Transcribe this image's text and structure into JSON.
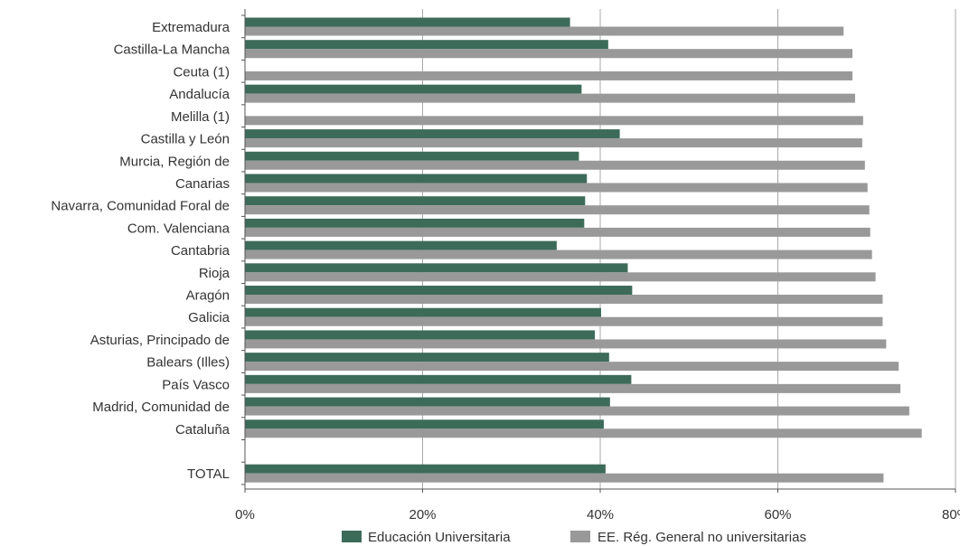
{
  "chart_data": {
    "type": "bar",
    "orientation": "horizontal",
    "categories": [
      "Extremadura",
      "Castilla-La Mancha",
      "Ceuta (1)",
      "Andalucía",
      "Melilla (1)",
      "Castilla y León",
      "Murcia, Región de",
      "Canarias",
      "Navarra, Comunidad Foral de",
      "Com. Valenciana",
      "Cantabria",
      "Rioja",
      "Aragón",
      "Galicia",
      "Asturias, Principado de",
      "Balears (Illes)",
      "País Vasco",
      "Madrid, Comunidad de",
      "Cataluña",
      "",
      "TOTAL"
    ],
    "series": [
      {
        "name": "Educación Universitaria",
        "color": "#3d6b5a",
        "values": [
          36.6,
          40.9,
          null,
          37.9,
          null,
          42.2,
          37.6,
          38.5,
          38.3,
          38.2,
          35.1,
          43.1,
          43.6,
          40.1,
          39.4,
          41.0,
          43.5,
          41.1,
          40.4,
          null,
          40.6
        ]
      },
      {
        "name": "EE. Rég. General no universitarias",
        "color": "#999999",
        "values": [
          67.4,
          68.4,
          68.4,
          68.7,
          69.6,
          69.5,
          69.8,
          70.1,
          70.3,
          70.4,
          70.6,
          71.0,
          71.8,
          71.8,
          72.2,
          73.6,
          73.8,
          74.8,
          76.2,
          null,
          71.9
        ]
      }
    ],
    "xlim": [
      0,
      80
    ],
    "xticks": [
      "0%",
      "20%",
      "40%",
      "60%",
      "80%"
    ],
    "grid": "vertical",
    "legend_position": "bottom"
  }
}
